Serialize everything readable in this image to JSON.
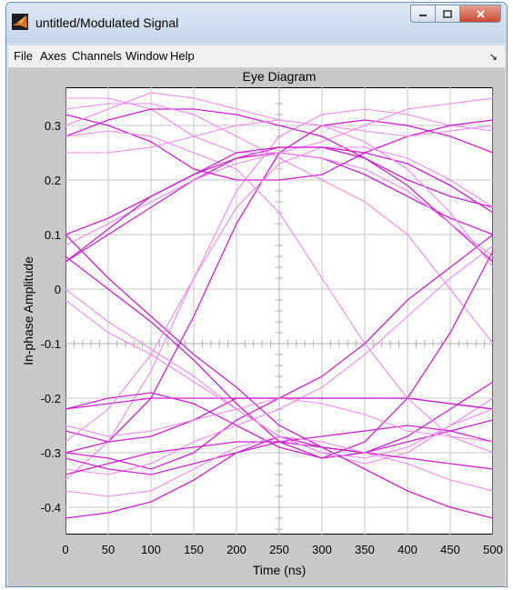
{
  "window": {
    "title": "untitled/Modulated Signal",
    "minimize_icon": "minimize-icon",
    "maximize_icon": "maximize-icon",
    "close_icon": "close-icon"
  },
  "menubar": {
    "items": [
      "File",
      "Axes",
      "Channels",
      "Window",
      "Help"
    ],
    "dock_icon": "dock-arrow-icon"
  },
  "chart_data": {
    "type": "line",
    "title": "Eye Diagram",
    "xlabel": "Time (ns)",
    "ylabel": "In-phase Amplitude",
    "xlim": [
      0,
      500
    ],
    "ylim": [
      -0.45,
      0.37
    ],
    "xticks": [
      0,
      50,
      100,
      150,
      200,
      250,
      300,
      350,
      400,
      450,
      500
    ],
    "yticks": [
      0.3,
      0.2,
      0.1,
      0,
      -0.1,
      -0.2,
      -0.3,
      -0.4
    ],
    "ytick_labels": [
      "0.3",
      "0.2",
      "0.1",
      "0",
      "-0.1",
      "-0.2",
      "-0.3",
      "-0.4"
    ],
    "grid": true,
    "colors": {
      "dark": "#cc22cc",
      "light": "#ee88ee",
      "plot_bg": "#ffffff",
      "figure_bg": "#c8c8c8"
    },
    "series": [
      {
        "style": "dark",
        "x": [
          0,
          50,
          100,
          150,
          200,
          250,
          300,
          350,
          400,
          450,
          500
        ],
        "y": [
          0.1,
          0.13,
          0.17,
          0.21,
          0.24,
          0.25,
          0.24,
          0.21,
          0.17,
          0.13,
          0.1
        ]
      },
      {
        "style": "dark",
        "x": [
          0,
          50,
          100,
          150,
          200,
          250,
          300,
          350,
          400,
          450,
          500
        ],
        "y": [
          0.05,
          0.1,
          0.15,
          0.2,
          0.24,
          0.26,
          0.26,
          0.24,
          0.19,
          0.12,
          0.05
        ]
      },
      {
        "style": "light",
        "x": [
          0,
          50,
          100,
          150,
          200,
          250,
          300,
          350,
          400,
          450,
          500
        ],
        "y": [
          0.08,
          0.12,
          0.16,
          0.2,
          0.23,
          0.25,
          0.24,
          0.22,
          0.18,
          0.12,
          0.06
        ]
      },
      {
        "style": "dark",
        "x": [
          0,
          50,
          100,
          150,
          200,
          250,
          300,
          350,
          400,
          450,
          500
        ],
        "y": [
          -0.3,
          -0.28,
          -0.2,
          -0.05,
          0.12,
          0.25,
          0.3,
          0.31,
          0.3,
          0.28,
          0.25
        ]
      },
      {
        "style": "light",
        "x": [
          0,
          50,
          100,
          150,
          200,
          250,
          300,
          350,
          400,
          450,
          500
        ],
        "y": [
          -0.35,
          -0.28,
          -0.15,
          0.02,
          0.18,
          0.28,
          0.32,
          0.33,
          0.32,
          0.3,
          0.29
        ]
      },
      {
        "style": "dark",
        "x": [
          0,
          50,
          100,
          150,
          200,
          250,
          300,
          350,
          400,
          450,
          500
        ],
        "y": [
          0.32,
          0.3,
          0.27,
          0.22,
          0.2,
          0.2,
          0.21,
          0.25,
          0.28,
          0.3,
          0.31
        ]
      },
      {
        "style": "light",
        "x": [
          0,
          50,
          100,
          150,
          200,
          250,
          300,
          350,
          400,
          450,
          500
        ],
        "y": [
          0.35,
          0.35,
          0.33,
          0.28,
          0.25,
          0.25,
          0.27,
          0.3,
          0.33,
          0.34,
          0.35
        ]
      },
      {
        "style": "light",
        "x": [
          0,
          50,
          100,
          150,
          200,
          250,
          300,
          350,
          400,
          450,
          500
        ],
        "y": [
          0.3,
          0.33,
          0.36,
          0.35,
          0.33,
          0.31,
          0.3,
          0.29,
          0.28,
          0.29,
          0.3
        ]
      },
      {
        "style": "dark",
        "x": [
          0,
          50,
          100,
          150,
          200,
          250,
          300,
          350,
          400,
          450,
          500
        ],
        "y": [
          0.28,
          0.31,
          0.33,
          0.33,
          0.32,
          0.3,
          0.28,
          0.24,
          0.2,
          0.17,
          0.15
        ]
      },
      {
        "style": "light",
        "x": [
          0,
          50,
          100,
          150,
          200,
          250,
          300,
          350,
          400,
          450,
          500
        ],
        "y": [
          0.33,
          0.34,
          0.34,
          0.32,
          0.28,
          0.24,
          0.2,
          0.16,
          0.1,
          0.0,
          -0.1
        ]
      },
      {
        "style": "dark",
        "x": [
          0,
          50,
          100,
          150,
          200,
          250,
          300,
          350,
          400,
          450,
          500
        ],
        "y": [
          0.06,
          0.0,
          -0.06,
          -0.13,
          -0.21,
          -0.28,
          -0.31,
          -0.3,
          -0.27,
          -0.22,
          -0.17
        ]
      },
      {
        "style": "dark",
        "x": [
          0,
          50,
          100,
          150,
          200,
          250,
          300,
          350,
          400,
          450,
          500
        ],
        "y": [
          0.1,
          0.02,
          -0.05,
          -0.12,
          -0.18,
          -0.25,
          -0.29,
          -0.3,
          -0.28,
          -0.26,
          -0.24
        ]
      },
      {
        "style": "light",
        "x": [
          0,
          50,
          100,
          150,
          200,
          250,
          300,
          350,
          400,
          450,
          500
        ],
        "y": [
          0.0,
          -0.06,
          -0.11,
          -0.16,
          -0.22,
          -0.27,
          -0.3,
          -0.32,
          -0.3,
          -0.25,
          -0.2
        ]
      },
      {
        "style": "dark",
        "x": [
          0,
          50,
          100,
          150,
          200,
          250,
          300,
          350,
          400,
          450,
          500
        ],
        "y": [
          -0.22,
          -0.2,
          -0.19,
          -0.21,
          -0.25,
          -0.29,
          -0.31,
          -0.28,
          -0.2,
          -0.08,
          0.07
        ]
      },
      {
        "style": "dark",
        "x": [
          0,
          50,
          100,
          150,
          200,
          250,
          300,
          350,
          400,
          450,
          500
        ],
        "y": [
          -0.3,
          -0.31,
          -0.33,
          -0.3,
          -0.24,
          -0.2,
          -0.16,
          -0.1,
          -0.02,
          0.04,
          0.1
        ]
      },
      {
        "style": "light",
        "x": [
          0,
          50,
          100,
          150,
          200,
          250,
          300,
          350,
          400,
          450,
          500
        ],
        "y": [
          -0.33,
          -0.34,
          -0.32,
          -0.28,
          -0.25,
          -0.22,
          -0.18,
          -0.12,
          -0.05,
          0.02,
          0.08
        ]
      },
      {
        "style": "dark",
        "x": [
          0,
          50,
          100,
          150,
          200,
          250,
          300,
          350,
          400,
          450,
          500
        ],
        "y": [
          -0.26,
          -0.28,
          -0.27,
          -0.24,
          -0.2,
          -0.2,
          -0.2,
          -0.2,
          -0.2,
          -0.21,
          -0.22
        ]
      },
      {
        "style": "dark",
        "x": [
          0,
          50,
          100,
          150,
          200,
          250,
          300,
          350,
          400,
          450,
          500
        ],
        "y": [
          -0.22,
          -0.21,
          -0.2,
          -0.2,
          -0.2,
          -0.2,
          -0.2,
          -0.2,
          -0.2,
          -0.21,
          -0.22
        ]
      },
      {
        "style": "dark",
        "x": [
          0,
          50,
          100,
          150,
          200,
          250,
          300,
          350,
          400,
          450,
          500
        ],
        "y": [
          -0.34,
          -0.32,
          -0.3,
          -0.29,
          -0.28,
          -0.28,
          -0.29,
          -0.3,
          -0.31,
          -0.32,
          -0.33
        ]
      },
      {
        "style": "dark",
        "x": [
          0,
          50,
          100,
          150,
          200,
          250,
          300,
          350,
          400,
          450,
          500
        ],
        "y": [
          -0.31,
          -0.33,
          -0.34,
          -0.32,
          -0.3,
          -0.28,
          -0.27,
          -0.26,
          -0.25,
          -0.26,
          -0.28
        ]
      },
      {
        "style": "dark",
        "x": [
          0,
          50,
          100,
          150,
          200,
          250,
          300,
          350,
          400,
          450,
          500
        ],
        "y": [
          -0.42,
          -0.41,
          -0.39,
          -0.35,
          -0.3,
          -0.27,
          -0.29,
          -0.33,
          -0.37,
          -0.4,
          -0.42
        ]
      },
      {
        "style": "light",
        "x": [
          0,
          50,
          100,
          150,
          200,
          250,
          300,
          350,
          400,
          450,
          500
        ],
        "y": [
          -0.37,
          -0.38,
          -0.37,
          -0.33,
          -0.29,
          -0.27,
          -0.28,
          -0.3,
          -0.32,
          -0.35,
          -0.37
        ]
      },
      {
        "style": "light",
        "x": [
          0,
          50,
          100,
          150,
          200,
          250,
          300,
          350,
          400,
          450,
          500
        ],
        "y": [
          -0.25,
          -0.27,
          -0.26,
          -0.24,
          -0.22,
          -0.2,
          -0.21,
          -0.23,
          -0.26,
          -0.27,
          -0.28
        ]
      },
      {
        "style": "light",
        "x": [
          0,
          50,
          100,
          150,
          200,
          250,
          300,
          350,
          400,
          450,
          500
        ],
        "y": [
          -0.02,
          -0.08,
          -0.12,
          -0.17,
          -0.22,
          -0.27,
          -0.3,
          -0.31,
          -0.29,
          -0.25,
          -0.22
        ]
      },
      {
        "style": "light",
        "x": [
          0,
          50,
          100,
          150,
          200,
          250,
          300,
          350,
          400,
          450,
          500
        ],
        "y": [
          -0.28,
          -0.22,
          -0.12,
          0.02,
          0.15,
          0.23,
          0.26,
          0.26,
          0.24,
          0.2,
          0.15
        ]
      },
      {
        "style": "light",
        "x": [
          0,
          50,
          100,
          150,
          200,
          250,
          300,
          350,
          400,
          450,
          500
        ],
        "y": [
          0.28,
          0.29,
          0.28,
          0.25,
          0.22,
          0.14,
          0.02,
          -0.1,
          -0.2,
          -0.27,
          -0.3
        ]
      },
      {
        "style": "dark",
        "x": [
          0,
          50,
          100,
          150,
          200,
          250,
          300,
          350,
          400,
          450,
          500
        ],
        "y": [
          0.05,
          0.11,
          0.17,
          0.21,
          0.25,
          0.26,
          0.26,
          0.25,
          0.23,
          0.19,
          0.14
        ]
      },
      {
        "style": "light",
        "x": [
          0,
          50,
          100,
          150,
          200,
          250,
          300,
          350,
          400,
          450,
          500
        ],
        "y": [
          0.25,
          0.25,
          0.26,
          0.28,
          0.3,
          0.31,
          0.3,
          0.27,
          0.22,
          0.14,
          0.04
        ]
      }
    ]
  }
}
